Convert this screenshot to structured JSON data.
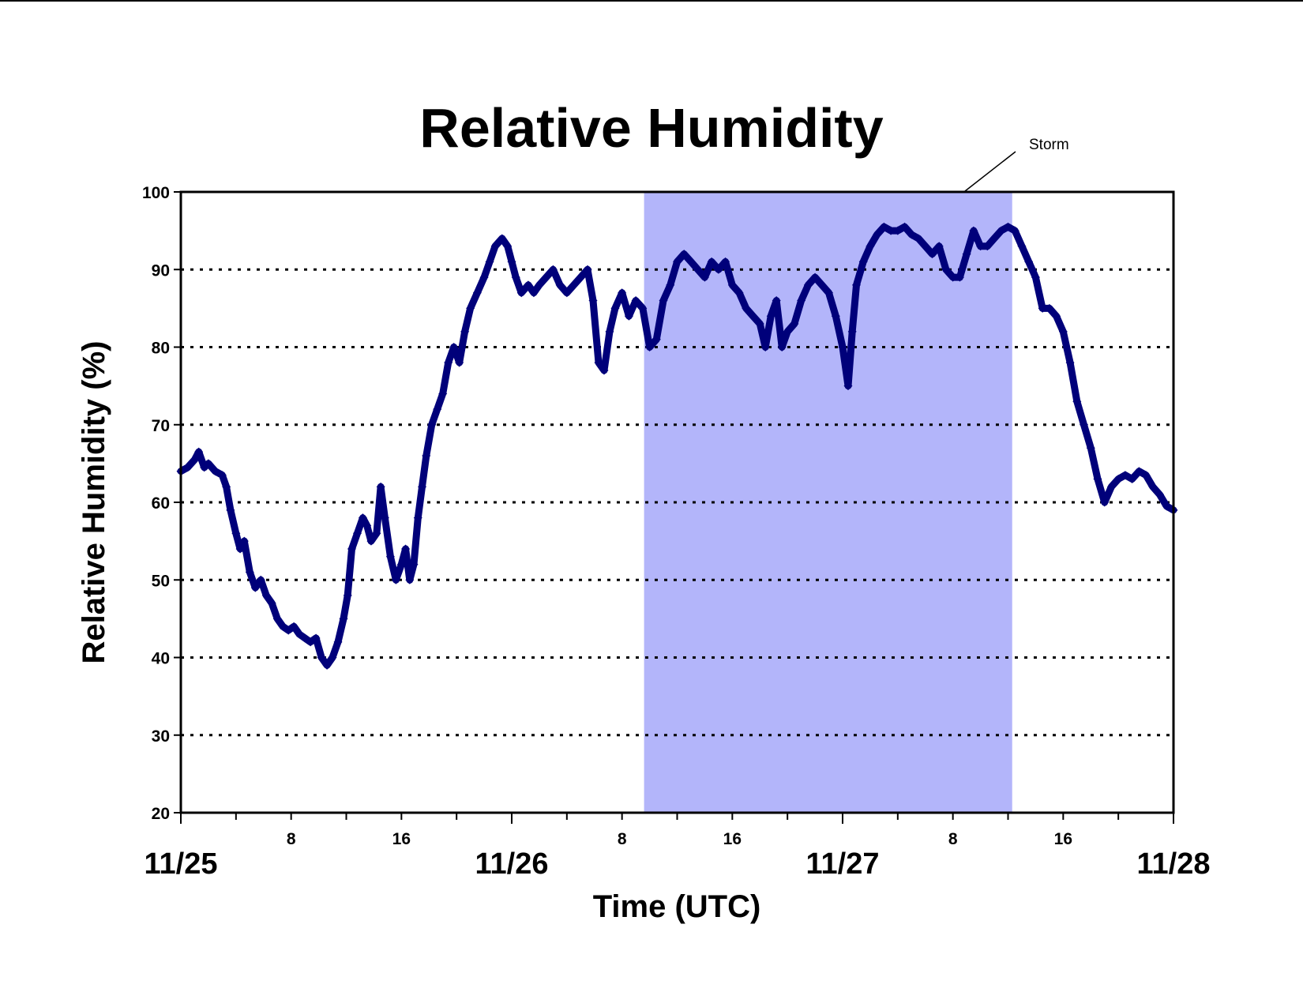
{
  "chart_data": {
    "type": "scatter",
    "title": "Relative Humidity",
    "xlabel": "Time (UTC)",
    "ylabel": "Relative Humidity (%)",
    "ylim": [
      20,
      100
    ],
    "yticks": [
      "20",
      "30",
      "40",
      "50",
      "60",
      "70",
      "80",
      "90",
      "100"
    ],
    "x_unit": "hours from 11/25 00:00 UTC",
    "xlim": [
      0,
      72
    ],
    "day_labels": [
      {
        "x": 0,
        "label": "11/25"
      },
      {
        "x": 24,
        "label": "11/26"
      },
      {
        "x": 48,
        "label": "11/27"
      },
      {
        "x": 72,
        "label": "11/28"
      }
    ],
    "hour_labels": [
      {
        "x": 8,
        "label": "8"
      },
      {
        "x": 16,
        "label": "16"
      },
      {
        "x": 32,
        "label": "8"
      },
      {
        "x": 40,
        "label": "16"
      },
      {
        "x": 56,
        "label": "8"
      },
      {
        "x": 64,
        "label": "16"
      }
    ],
    "grid": "horizontal dotted",
    "marker_color": "#00007a",
    "shade_color": "#b3b5fa",
    "annotation": {
      "label": "Storm",
      "x_start": 33.6,
      "x_end": 60.3
    },
    "series": [
      {
        "name": "",
        "points": [
          [
            0,
            64
          ],
          [
            0.5,
            64.5
          ],
          [
            1,
            65.5
          ],
          [
            1.3,
            66.5
          ],
          [
            1.7,
            64.5
          ],
          [
            2,
            65
          ],
          [
            2.5,
            64
          ],
          [
            3,
            63.5
          ],
          [
            3.3,
            62
          ],
          [
            3.6,
            59
          ],
          [
            4,
            56
          ],
          [
            4.3,
            54
          ],
          [
            4.6,
            55
          ],
          [
            5,
            51
          ],
          [
            5.4,
            49
          ],
          [
            5.8,
            50
          ],
          [
            6.2,
            48
          ],
          [
            6.6,
            47
          ],
          [
            7,
            45
          ],
          [
            7.4,
            44
          ],
          [
            7.8,
            43.5
          ],
          [
            8.2,
            44
          ],
          [
            8.6,
            43
          ],
          [
            9,
            42.5
          ],
          [
            9.4,
            42
          ],
          [
            9.8,
            42.5
          ],
          [
            10.2,
            40
          ],
          [
            10.6,
            39
          ],
          [
            11,
            40
          ],
          [
            11.4,
            42
          ],
          [
            11.8,
            45
          ],
          [
            12.1,
            48
          ],
          [
            12.4,
            54
          ],
          [
            12.8,
            56
          ],
          [
            13.2,
            58
          ],
          [
            13.5,
            57
          ],
          [
            13.8,
            55
          ],
          [
            14.2,
            56
          ],
          [
            14.5,
            62
          ],
          [
            14.8,
            58
          ],
          [
            15.2,
            53
          ],
          [
            15.6,
            50
          ],
          [
            16,
            52
          ],
          [
            16.3,
            54
          ],
          [
            16.6,
            50
          ],
          [
            16.9,
            52
          ],
          [
            17.2,
            58
          ],
          [
            17.5,
            62
          ],
          [
            17.8,
            66
          ],
          [
            18.2,
            70
          ],
          [
            18.6,
            72
          ],
          [
            19,
            74
          ],
          [
            19.4,
            78
          ],
          [
            19.8,
            80
          ],
          [
            20.2,
            78
          ],
          [
            20.6,
            82
          ],
          [
            21,
            85
          ],
          [
            21.5,
            87
          ],
          [
            22,
            89
          ],
          [
            22.4,
            91
          ],
          [
            22.8,
            93
          ],
          [
            23.3,
            94
          ],
          [
            23.7,
            93
          ],
          [
            24,
            91
          ],
          [
            24.3,
            89
          ],
          [
            24.7,
            87
          ],
          [
            25.2,
            88
          ],
          [
            25.6,
            87
          ],
          [
            26,
            88
          ],
          [
            26.5,
            89
          ],
          [
            27,
            90
          ],
          [
            27.5,
            88
          ],
          [
            28,
            87
          ],
          [
            28.5,
            88
          ],
          [
            29,
            89
          ],
          [
            29.5,
            90
          ],
          [
            29.9,
            86
          ],
          [
            30.3,
            78
          ],
          [
            30.7,
            77
          ],
          [
            31.1,
            82
          ],
          [
            31.5,
            85
          ],
          [
            32,
            87
          ],
          [
            32.5,
            84
          ],
          [
            33,
            86
          ],
          [
            33.5,
            85
          ],
          [
            34,
            80
          ],
          [
            34.5,
            81
          ],
          [
            35,
            86
          ],
          [
            35.5,
            88
          ],
          [
            36,
            91
          ],
          [
            36.5,
            92
          ],
          [
            37,
            91
          ],
          [
            37.5,
            90
          ],
          [
            38,
            89
          ],
          [
            38.5,
            91
          ],
          [
            39,
            90
          ],
          [
            39.5,
            91
          ],
          [
            40,
            88
          ],
          [
            40.5,
            87
          ],
          [
            41,
            85
          ],
          [
            41.5,
            84
          ],
          [
            42,
            83
          ],
          [
            42.4,
            80
          ],
          [
            42.8,
            84
          ],
          [
            43.2,
            86
          ],
          [
            43.6,
            80
          ],
          [
            44,
            82
          ],
          [
            44.5,
            83
          ],
          [
            45,
            86
          ],
          [
            45.5,
            88
          ],
          [
            46,
            89
          ],
          [
            46.5,
            88
          ],
          [
            47,
            87
          ],
          [
            47.5,
            84
          ],
          [
            48,
            80
          ],
          [
            48.4,
            75
          ],
          [
            48.7,
            82
          ],
          [
            49,
            88
          ],
          [
            49.5,
            91
          ],
          [
            50,
            93
          ],
          [
            50.5,
            94.5
          ],
          [
            51,
            95.5
          ],
          [
            51.5,
            95
          ],
          [
            52,
            95
          ],
          [
            52.5,
            95.5
          ],
          [
            53,
            94.5
          ],
          [
            53.5,
            94
          ],
          [
            54,
            93
          ],
          [
            54.5,
            92
          ],
          [
            55,
            93
          ],
          [
            55.5,
            90
          ],
          [
            56,
            89
          ],
          [
            56.5,
            89
          ],
          [
            57,
            92
          ],
          [
            57.5,
            95
          ],
          [
            58,
            93
          ],
          [
            58.5,
            93
          ],
          [
            59,
            94
          ],
          [
            59.5,
            95
          ],
          [
            60,
            95.5
          ],
          [
            60.5,
            95
          ],
          [
            61,
            93
          ],
          [
            61.5,
            91
          ],
          [
            62,
            89
          ],
          [
            62.5,
            85
          ],
          [
            63,
            85
          ],
          [
            63.5,
            84
          ],
          [
            64,
            82
          ],
          [
            64.5,
            78
          ],
          [
            65,
            73
          ],
          [
            65.5,
            70
          ],
          [
            66,
            67
          ],
          [
            66.5,
            63
          ],
          [
            67,
            60
          ],
          [
            67.5,
            62
          ],
          [
            68,
            63
          ],
          [
            68.5,
            63.5
          ],
          [
            69,
            63
          ],
          [
            69.5,
            64
          ],
          [
            70,
            63.5
          ],
          [
            70.5,
            62
          ],
          [
            71,
            61
          ],
          [
            71.5,
            59.5
          ],
          [
            72,
            59
          ]
        ]
      }
    ]
  }
}
